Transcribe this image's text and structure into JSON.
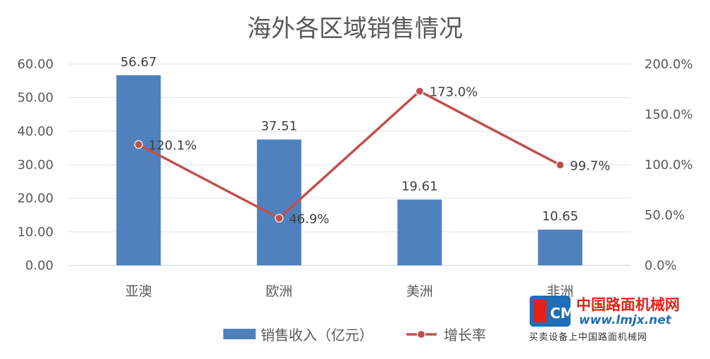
{
  "chart_data": {
    "type": "bar",
    "title": "海外各区域销售情况",
    "categories": [
      "亚澳",
      "欧洲",
      "美洲",
      "非洲"
    ],
    "series": [
      {
        "name": "销售收入（亿元）",
        "type": "bar",
        "axis": "left",
        "values": [
          56.67,
          37.51,
          19.61,
          10.65
        ],
        "labels": [
          "56.67",
          "37.51",
          "19.61",
          "10.65"
        ],
        "color": "#4f81bd"
      },
      {
        "name": "增长率",
        "type": "line",
        "axis": "right",
        "values": [
          120.1,
          46.9,
          173.0,
          99.7
        ],
        "labels": [
          "120.1%",
          "46.9%",
          "173.0%",
          "99.7%"
        ],
        "color": "#c0504d"
      }
    ],
    "y_left": {
      "range": [
        0,
        60
      ],
      "ticks": [
        "0.00",
        "10.00",
        "20.00",
        "30.00",
        "40.00",
        "50.00",
        "60.00"
      ]
    },
    "y_right": {
      "range": [
        0,
        200
      ],
      "ticks": [
        "0.0%",
        "50.0%",
        "100.0%",
        "150.0%",
        "200.0%"
      ]
    },
    "grid": true,
    "legend": "bottom"
  },
  "watermark": {
    "cn_name": "中国路面机械网",
    "url": "www.lmjx.net",
    "slogan": "买卖设备上中国路面机械网",
    "logo_text": "CM"
  }
}
